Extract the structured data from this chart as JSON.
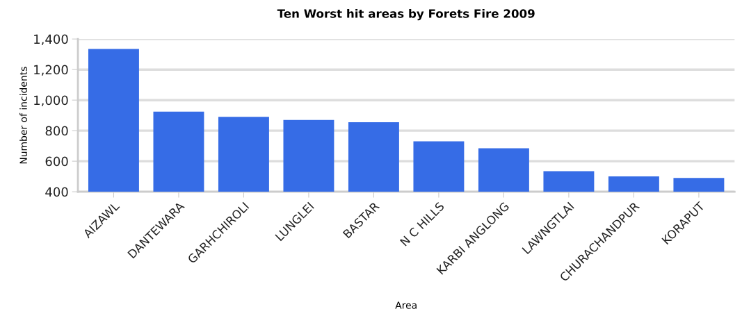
{
  "chart_data": {
    "type": "bar",
    "title": "Ten Worst hit areas by Forets Fire 2009",
    "xlabel": "Area",
    "ylabel": "Number of incidents",
    "categories": [
      "AIZAWL",
      "DANTEWARA",
      "GARHCHIROLI",
      "LUNGLEI",
      "BASTAR",
      "N C HILLS",
      "KARBI ANGLONG",
      "LAWNGTLAI",
      "CHURACHANDPUR",
      "KORAPUT"
    ],
    "values": [
      1335,
      925,
      890,
      870,
      855,
      730,
      685,
      535,
      500,
      490
    ],
    "color": "#366ce6",
    "ylim": [
      400,
      1400
    ],
    "yticks": [
      {
        "value": 400,
        "label": "400"
      },
      {
        "value": 600,
        "label": "600"
      },
      {
        "value": 800,
        "label": "800"
      },
      {
        "value": 1000,
        "label": "1,000"
      },
      {
        "value": 1200,
        "label": "1,200"
      },
      {
        "value": 1400,
        "label": "1,400"
      }
    ],
    "grid": "y",
    "legend": false
  }
}
